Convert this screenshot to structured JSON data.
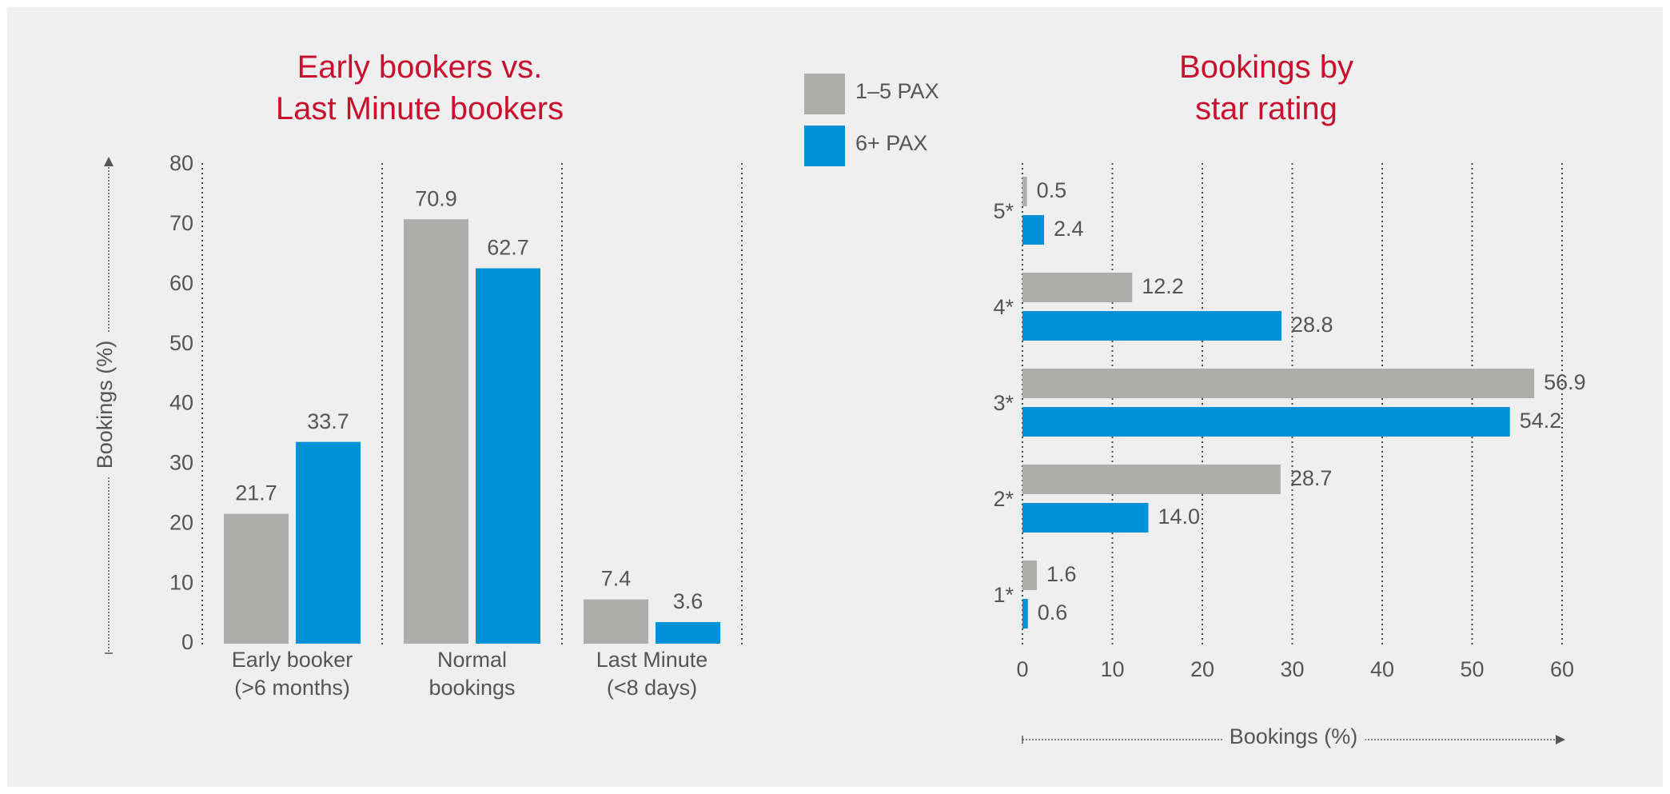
{
  "chart_data": [
    {
      "type": "bar",
      "title": "Early bookers vs.\nLast Minute bookers",
      "ylabel": "Bookings (%)",
      "categories": [
        "Early booker\n(>6 months)",
        "Normal\nbookings",
        "Last Minute\n(<8 days)"
      ],
      "series": [
        {
          "name": "1–5 PAX",
          "color": "#adadac",
          "values": [
            21.7,
            70.9,
            7.4
          ]
        },
        {
          "name": "6+ PAX",
          "color": "#0092d8",
          "values": [
            33.7,
            62.7,
            3.6
          ]
        }
      ],
      "ylim": [
        0,
        80
      ],
      "yticks": [
        0,
        10,
        20,
        30,
        40,
        50,
        60,
        70,
        80
      ]
    },
    {
      "type": "hbar",
      "title": "Bookings by\nstar rating",
      "xlabel": "Bookings (%)",
      "categories": [
        "5*",
        "4*",
        "3*",
        "2*",
        "1*"
      ],
      "series": [
        {
          "color": "#adadac",
          "values": [
            0.5,
            12.2,
            56.9,
            28.7,
            1.6
          ]
        },
        {
          "color": "#0092d8",
          "values": [
            2.4,
            28.8,
            54.2,
            14.0,
            0.6
          ],
          "value_labels": [
            "2.4",
            "28.8",
            "54.2",
            "14.0",
            "0.6"
          ]
        }
      ],
      "xlim": [
        0,
        60
      ],
      "xticks": [
        0,
        10,
        20,
        30,
        40,
        50,
        60
      ],
      "grid": true
    }
  ]
}
